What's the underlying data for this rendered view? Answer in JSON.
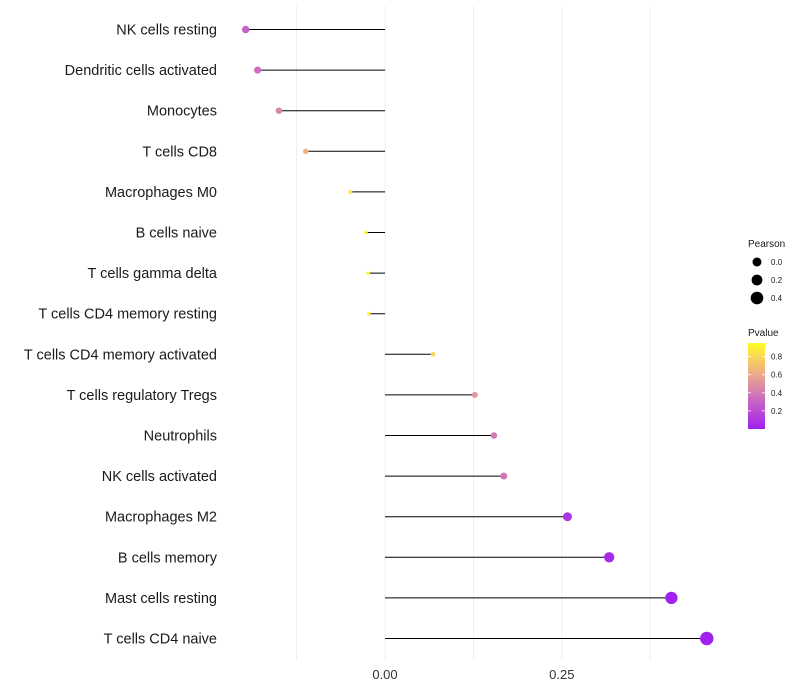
{
  "chart_data": {
    "type": "lollipop",
    "title": "",
    "xlabel": "",
    "ylabel": "",
    "xlim": [
      -0.2,
      0.5
    ],
    "xticks": [
      0.0,
      0.25
    ],
    "x_tick_labels": [
      "0.00",
      "0.25"
    ],
    "grid": true,
    "categories": [
      "NK cells resting",
      "Dendritic cells activated",
      "Monocytes",
      "T cells CD8",
      "Macrophages M0",
      "B cells naive",
      "T cells gamma delta",
      "T cells CD4 memory resting",
      "T cells CD4 memory activated",
      "T cells regulatory  Tregs ",
      "Neutrophils",
      "NK cells activated",
      "Macrophages M2",
      "B cells memory",
      "Mast cells resting",
      "T cells CD4 naive"
    ],
    "values": [
      -0.197,
      -0.18,
      -0.15,
      -0.112,
      -0.049,
      -0.027,
      -0.024,
      -0.023,
      0.068,
      0.127,
      0.154,
      0.168,
      0.258,
      0.317,
      0.405,
      0.455
    ],
    "pvalues": [
      0.3,
      0.35,
      0.45,
      0.65,
      0.85,
      0.9,
      0.92,
      0.92,
      0.78,
      0.52,
      0.4,
      0.38,
      0.1,
      0.05,
      0.01,
      0.005
    ],
    "legend": {
      "size_title": "Pearson",
      "size_labels": [
        "0.0",
        "0.2",
        "0.4"
      ],
      "size_values": [
        0.0,
        0.2,
        0.4
      ],
      "color_title": "Pvalue",
      "color_labels": [
        "0.8",
        "0.6",
        "0.4",
        "0.2"
      ],
      "color_values": [
        0.8,
        0.6,
        0.4,
        0.2
      ],
      "color_range": [
        0.0,
        0.95
      ],
      "low_color": "#a020f0",
      "high_color": "#ffff20",
      "position": "right"
    },
    "segment_color": "#000000"
  }
}
